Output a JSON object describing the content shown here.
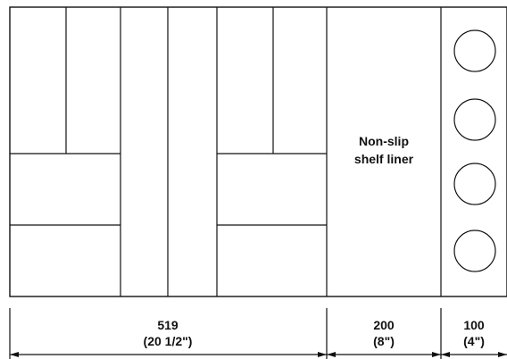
{
  "liner_label": {
    "line1": "Non-slip",
    "line2": "shelf liner"
  },
  "dimensions": [
    {
      "value": "519",
      "inches": "(20 1/2\")"
    },
    {
      "value": "200",
      "inches": "(8\")"
    },
    {
      "value": "100",
      "inches": "(4\")"
    }
  ],
  "colors": {
    "line": "#111111",
    "background": "#ffffff"
  }
}
